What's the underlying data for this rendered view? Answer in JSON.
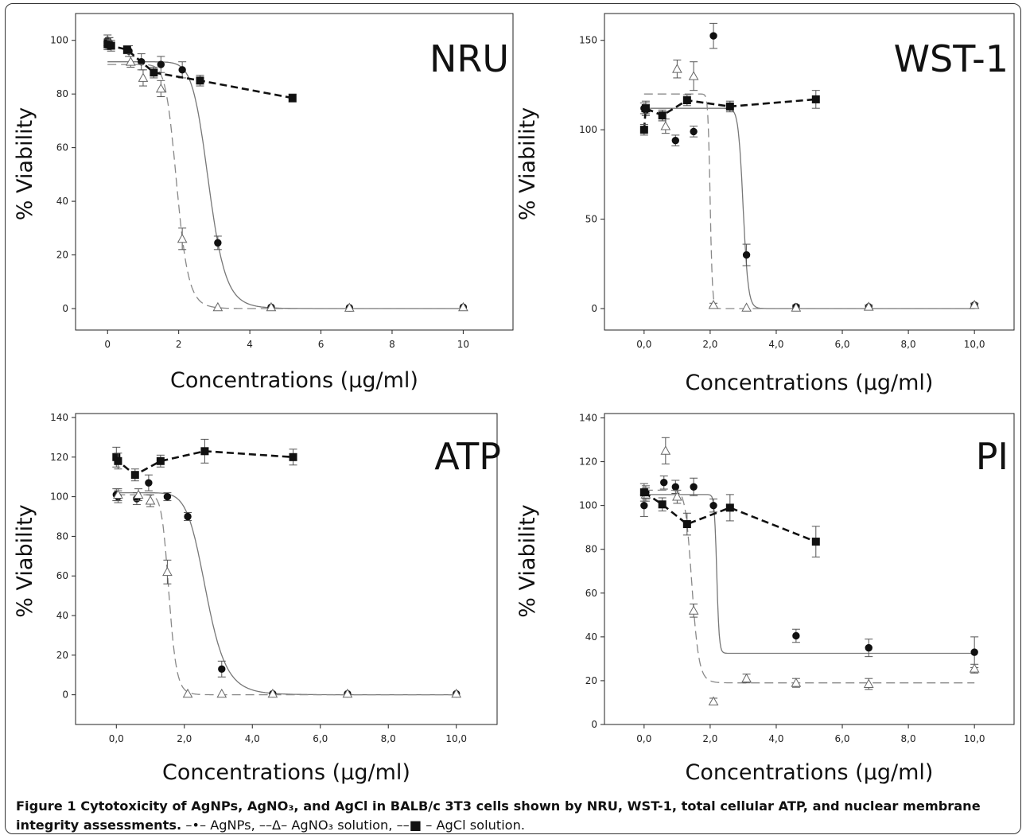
{
  "figure": {
    "caption_label": "Figure 1",
    "caption_bold_rest": " Cytotoxicity of AgNPs, AgNO₃, and AgCl in BALB/c 3T3 cells shown by NRU, WST-1, total cellular ATP, and nuclear membrane integrity assessments.",
    "caption_legend": " –•– AgNPs, ––Δ– AgNO₃ solution, ––■ – AgCl solution."
  },
  "chart_data": [
    {
      "type": "scatter",
      "title": "NRU",
      "xlabel": "Concentrations (μg/ml)",
      "ylabel": "% Viability",
      "xlim": [
        -0.9,
        11.4
      ],
      "ylim": [
        -8,
        110
      ],
      "xticks": [
        0,
        2,
        4,
        6,
        8,
        10
      ],
      "xtick_labels": [
        "0",
        "2",
        "4",
        "6",
        "8",
        "10"
      ],
      "yticks": [
        0,
        20,
        40,
        60,
        80,
        100
      ],
      "ytick_labels": [
        "0",
        "20",
        "40",
        "60",
        "80",
        "100"
      ],
      "series": [
        {
          "name": "AgNPs",
          "marker": "circle",
          "fit": {
            "top": 92,
            "bottom": 0,
            "ec50": 2.85,
            "hill": 12
          },
          "x": [
            0,
            0.05,
            0.6,
            0.95,
            1.5,
            2.1,
            3.1,
            4.6,
            6.8,
            10.0
          ],
          "y": [
            100,
            99,
            96,
            92,
            91,
            89,
            24.5,
            0.5,
            0.3,
            0.5
          ],
          "err": [
            2,
            2,
            2,
            3,
            3,
            3,
            2.5,
            0.5,
            0.3,
            0.5
          ]
        },
        {
          "name": "AgNO₃ solution",
          "marker": "triangle",
          "fit": {
            "top": 91,
            "bottom": 0,
            "ec50": 1.95,
            "hill": 12
          },
          "x": [
            0.05,
            0.65,
            1.0,
            1.5,
            2.1,
            3.1,
            4.6,
            6.8,
            10.0
          ],
          "y": [
            99,
            92,
            86,
            82,
            26,
            0.5,
            0.5,
            0.3,
            0.5
          ],
          "err": [
            2,
            2,
            3,
            3,
            4,
            0.5,
            0.5,
            0.3,
            0.5
          ]
        },
        {
          "name": "AgCl solution",
          "marker": "square",
          "x": [
            0,
            0.1,
            0.55,
            1.3,
            2.6,
            5.2
          ],
          "y": [
            98.5,
            98,
            96.5,
            88,
            85,
            78.5
          ],
          "err": [
            2,
            2,
            1.5,
            2,
            2,
            1.5
          ]
        }
      ]
    },
    {
      "type": "scatter",
      "title": "WST-1",
      "xlabel": "Concentrations (μg/ml)",
      "ylabel": "% Viability",
      "xlim": [
        -1.2,
        11.2
      ],
      "ylim": [
        -12,
        165
      ],
      "xticks": [
        0,
        2,
        4,
        6,
        8,
        10
      ],
      "xtick_labels": [
        "0,0",
        "2,0",
        "4,0",
        "6,0",
        "8,0",
        "10,0"
      ],
      "yticks": [
        0,
        50,
        100,
        150
      ],
      "ytick_labels": [
        "0",
        "50",
        "100",
        "150"
      ],
      "series": [
        {
          "name": "AgNPs",
          "marker": "circle",
          "fit": {
            "top": 112,
            "bottom": 0,
            "ec50": 3.0,
            "hill": 40
          },
          "x": [
            0,
            0.05,
            0.55,
            0.95,
            1.5,
            2.1,
            3.1,
            4.6,
            6.8,
            10.0
          ],
          "y": [
            112,
            111,
            108,
            94,
            99,
            152.5,
            30,
            1,
            1,
            2
          ],
          "err": [
            3,
            3,
            3,
            3,
            3,
            7,
            6,
            1,
            1,
            1
          ]
        },
        {
          "name": "AgNO₃ solution",
          "marker": "triangle",
          "fit": {
            "top": 120,
            "bottom": 0,
            "ec50": 2.0,
            "hill": 60
          },
          "x": [
            0.05,
            0.65,
            1.0,
            1.5,
            2.1,
            3.1,
            4.6,
            6.8,
            10.0
          ],
          "y": [
            112,
            102,
            134,
            130,
            2,
            0.5,
            0.5,
            1,
            2
          ],
          "err": [
            4,
            4,
            5,
            8,
            1,
            0.5,
            0.5,
            1,
            1
          ]
        },
        {
          "name": "AgCl solution",
          "marker": "square",
          "x": [
            0,
            0.05,
            0.55,
            1.3,
            2.6,
            5.2
          ],
          "y": [
            100,
            112,
            108,
            116.5,
            113,
            117
          ],
          "err": [
            3,
            3,
            3,
            3,
            3,
            5
          ]
        }
      ]
    },
    {
      "type": "scatter",
      "title": "ATP",
      "xlabel": "Concentrations (μg/ml)",
      "ylabel": "% Viability",
      "xlim": [
        -1.2,
        11.2
      ],
      "ylim": [
        -15,
        142
      ],
      "xticks": [
        0,
        2,
        4,
        6,
        8,
        10
      ],
      "xtick_labels": [
        "0,0",
        "2,0",
        "4,0",
        "6,0",
        "8,0",
        "10,0"
      ],
      "yticks": [
        0,
        20,
        40,
        60,
        80,
        100,
        120,
        140
      ],
      "ytick_labels": [
        "0",
        "20",
        "40",
        "60",
        "80",
        "100",
        "120",
        "140"
      ],
      "series": [
        {
          "name": "AgNPs",
          "marker": "circle",
          "fit": {
            "top": 102,
            "bottom": 0,
            "ec50": 2.65,
            "hill": 9
          },
          "x": [
            0,
            0.05,
            0.6,
            0.95,
            1.5,
            2.1,
            3.1,
            4.6,
            6.8,
            10.0
          ],
          "y": [
            101,
            100,
            99,
            107,
            100,
            90,
            13,
            0.5,
            0.5,
            0.5
          ],
          "err": [
            3,
            3,
            3,
            4,
            2,
            2,
            4,
            0.5,
            0.5,
            0.5
          ]
        },
        {
          "name": "AgNO₃ solution",
          "marker": "triangle",
          "fit": {
            "top": 101,
            "bottom": 0,
            "ec50": 1.55,
            "hill": 14
          },
          "x": [
            0.05,
            0.65,
            1.0,
            1.5,
            2.1,
            3.1,
            4.6,
            6.8,
            10.0
          ],
          "y": [
            101,
            101,
            98,
            62,
            0.5,
            0.5,
            0.5,
            0.5,
            0.5
          ],
          "err": [
            3,
            3,
            3,
            6,
            0.5,
            0.5,
            0.5,
            0.5,
            0.5
          ]
        },
        {
          "name": "AgCl solution",
          "marker": "square",
          "x": [
            0,
            0.05,
            0.55,
            1.3,
            2.6,
            5.2
          ],
          "y": [
            120,
            118,
            111,
            118,
            123,
            120
          ],
          "err": [
            5,
            4,
            3,
            3,
            6,
            4
          ]
        }
      ]
    },
    {
      "type": "scatter",
      "title": "PI",
      "xlabel": "Concentrations (μg/ml)",
      "ylabel": "% Viability",
      "xlim": [
        -1.2,
        11.2
      ],
      "ylim": [
        0,
        142
      ],
      "xticks": [
        0,
        2,
        4,
        6,
        8,
        10
      ],
      "xtick_labels": [
        "0,0",
        "2,0",
        "4,0",
        "6,0",
        "8,0",
        "10,0"
      ],
      "yticks": [
        0,
        20,
        40,
        60,
        80,
        100,
        120,
        140
      ],
      "ytick_labels": [
        "0",
        "20",
        "40",
        "60",
        "80",
        "100",
        "120",
        "140"
      ],
      "series": [
        {
          "name": "AgNPs",
          "marker": "circle",
          "fit": {
            "top": 105,
            "bottom": 32.5,
            "ec50": 2.2,
            "hill": 60
          },
          "x": [
            0,
            0.05,
            0.6,
            0.95,
            1.5,
            2.1,
            4.6,
            6.8,
            10.0
          ],
          "y": [
            100,
            106,
            110.5,
            108.5,
            108.5,
            100,
            40.5,
            35,
            33
          ],
          "err": [
            5,
            3,
            3,
            3,
            4,
            3,
            3,
            4,
            7
          ]
        },
        {
          "name": "AgNO₃ solution",
          "marker": "triangle",
          "fit": {
            "top": 107,
            "bottom": 19,
            "ec50": 1.45,
            "hill": 14
          },
          "x": [
            0.05,
            0.65,
            1.0,
            1.5,
            2.1,
            3.1,
            4.6,
            6.8,
            10.0
          ],
          "y": [
            105,
            125,
            104,
            52,
            10.5,
            21,
            19,
            18.5,
            25.5
          ],
          "err": [
            3,
            6,
            3,
            3,
            1.5,
            2,
            2,
            2.5,
            2
          ]
        },
        {
          "name": "AgCl solution",
          "marker": "square",
          "x": [
            0,
            0.55,
            1.3,
            2.6,
            5.2
          ],
          "y": [
            106,
            100.5,
            91.5,
            99,
            83.5
          ],
          "err": [
            4,
            3,
            5,
            6,
            7
          ]
        }
      ]
    }
  ]
}
